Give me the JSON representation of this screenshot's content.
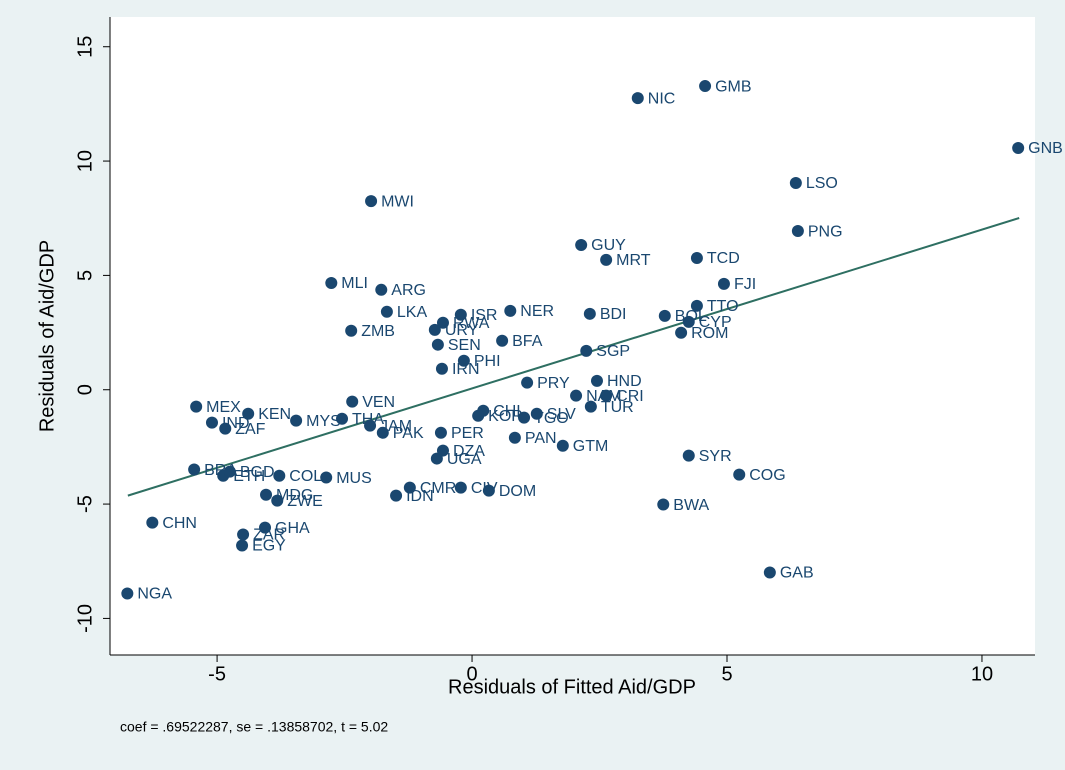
{
  "chart_data": {
    "type": "scatter",
    "x_label": "Residuals of Fitted Aid/GDP",
    "y_label": "Residuals of Aid/GDP",
    "note": "coef = .69522287, se = .13858702, t = 5.02",
    "color": "#1a476f",
    "fit_color": "#2e6f62",
    "xlim": [
      -7.1,
      11.04
    ],
    "ylim": [
      -11.6,
      16.3
    ],
    "xticks": [
      -5,
      0,
      5,
      10
    ],
    "yticks": [
      -10,
      -5,
      0,
      5,
      10,
      15
    ],
    "fit_line": {
      "x": [
        -6.75,
        10.73
      ],
      "y": [
        -4.63,
        7.51
      ]
    },
    "point_labels": [
      "NIC",
      "GMB",
      "GNB",
      "LSO",
      "PNG",
      "MWI",
      "GUY",
      "MRT",
      "TCD",
      "FJI",
      "MLI",
      "ARG",
      "LKA",
      "ZMB",
      "ISR",
      "NER",
      "BDI",
      "BOL",
      "TTO",
      "CYP",
      "ROM",
      "RWA",
      "URY",
      "SEN",
      "BFA",
      "PHI",
      "SGP",
      "IRN",
      "PRY",
      "HND",
      "NAM",
      "CRI",
      "TUR",
      "VEN",
      "MEX",
      "KEN",
      "IND",
      "ZAF",
      "MYS",
      "THA",
      "JAM",
      "PAK",
      "CHL",
      "KOR",
      "TGO",
      "SLV",
      "PER",
      "GTM",
      "PAN",
      "DZA",
      "UGA",
      "SYR",
      "COG",
      "BRA",
      "ETH",
      "BGD",
      "COL",
      "MUS",
      "CMR",
      "CIV",
      "DOM",
      "IDN",
      "MDG",
      "ZWE",
      "BWA",
      "CHN",
      "GHA",
      "ZAR",
      "EGY",
      "GAB",
      "NGA"
    ],
    "x": [
      3.25,
      4.57,
      10.71,
      6.35,
      6.39,
      -1.98,
      2.14,
      2.63,
      4.41,
      4.94,
      -2.76,
      -1.78,
      -1.67,
      -2.37,
      -0.22,
      0.75,
      2.31,
      3.78,
      4.41,
      4.25,
      4.1,
      -0.57,
      -0.73,
      -0.67,
      0.59,
      -0.16,
      2.24,
      -0.59,
      1.08,
      2.45,
      2.04,
      2.63,
      2.33,
      -2.35,
      -5.41,
      -4.39,
      -5.1,
      -4.84,
      -3.45,
      -2.55,
      -2.0,
      -1.75,
      0.22,
      0.12,
      1.02,
      1.27,
      -0.61,
      1.78,
      0.84,
      -0.57,
      -0.69,
      4.25,
      5.24,
      -5.45,
      -4.88,
      -4.75,
      -3.78,
      -2.86,
      -1.22,
      -0.22,
      0.33,
      -1.49,
      -4.04,
      -3.82,
      3.75,
      -6.27,
      -4.06,
      -4.49,
      -4.51,
      5.84,
      -6.76
    ],
    "values": [
      12.75,
      13.28,
      10.57,
      9.04,
      6.94,
      8.25,
      6.33,
      5.68,
      5.76,
      4.63,
      4.67,
      4.37,
      3.41,
      2.58,
      3.28,
      3.45,
      3.32,
      3.23,
      3.67,
      2.97,
      2.49,
      2.93,
      2.62,
      1.97,
      2.14,
      1.27,
      1.7,
      0.92,
      0.31,
      0.39,
      -0.26,
      -0.26,
      -0.74,
      -0.52,
      -0.74,
      -1.05,
      -1.44,
      -1.7,
      -1.35,
      -1.27,
      -1.57,
      -1.88,
      -0.92,
      -1.14,
      -1.22,
      -1.05,
      -1.88,
      -2.45,
      -2.1,
      -2.66,
      -3.01,
      -2.88,
      -3.71,
      -3.49,
      -3.76,
      -3.58,
      -3.76,
      -3.84,
      -4.28,
      -4.28,
      -4.41,
      -4.63,
      -4.59,
      -4.85,
      -5.02,
      -5.81,
      -6.03,
      -6.33,
      -6.81,
      -7.99,
      -8.91
    ]
  }
}
